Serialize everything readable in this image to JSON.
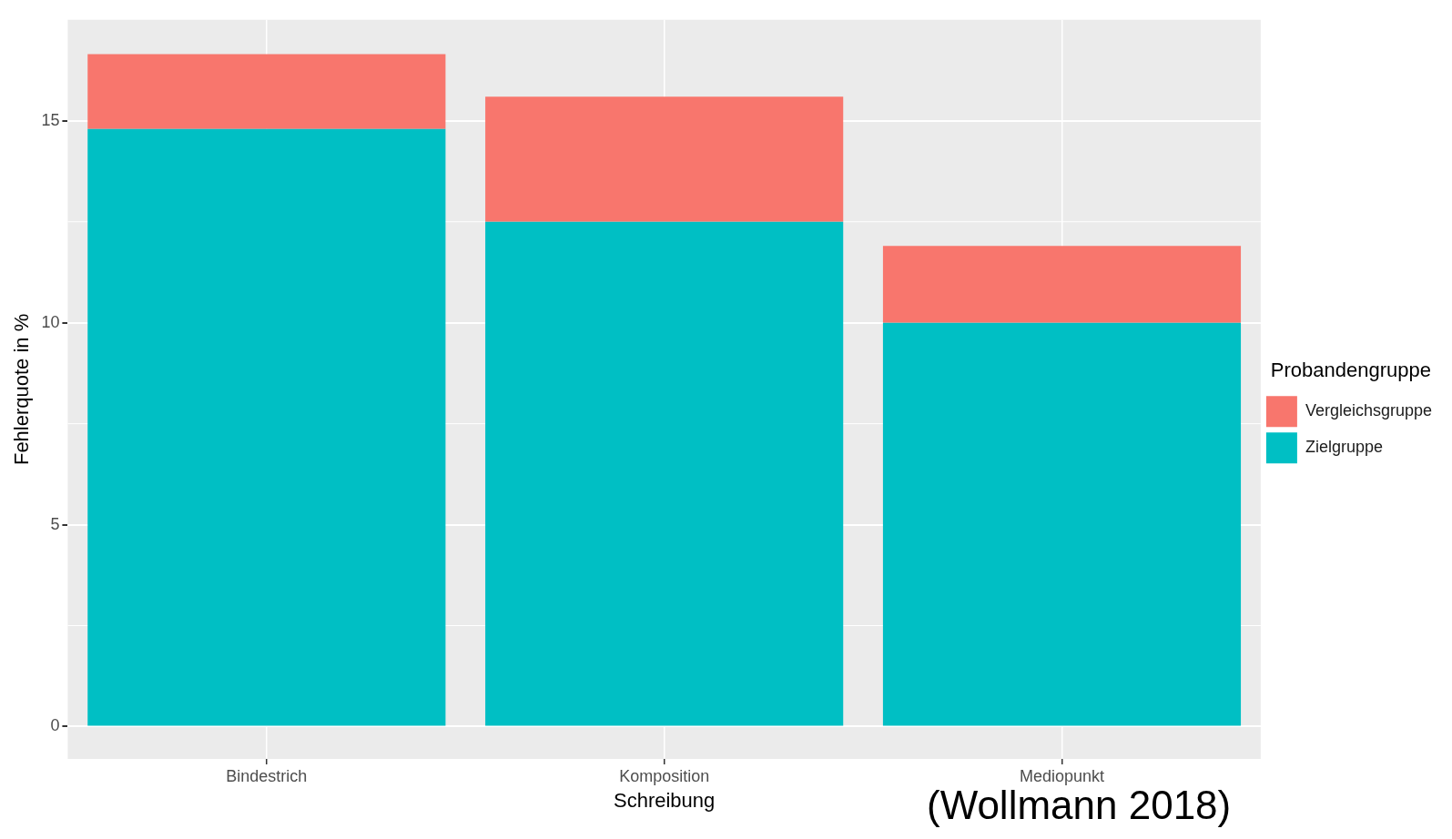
{
  "chart_data": {
    "type": "bar",
    "stacked": true,
    "categories": [
      "Bindestrich",
      "Komposition",
      "Mediopunkt"
    ],
    "series": [
      {
        "name": "Zielgruppe",
        "color": "#00bfc4",
        "values": [
          14.8,
          12.5,
          10.0
        ]
      },
      {
        "name": "Vergleichsgruppe",
        "color": "#f8766d",
        "values": [
          1.85,
          3.1,
          1.9
        ]
      }
    ],
    "xlabel": "Schreibung",
    "ylabel": "Fehlerquote in %",
    "legend_title": "Probandengruppe",
    "ylim": [
      -0.8,
      17.5
    ],
    "yticks": [
      0,
      5,
      10,
      15
    ],
    "grid": true,
    "legend": "right",
    "annotations": [
      "(Wollmann 2018)"
    ]
  }
}
